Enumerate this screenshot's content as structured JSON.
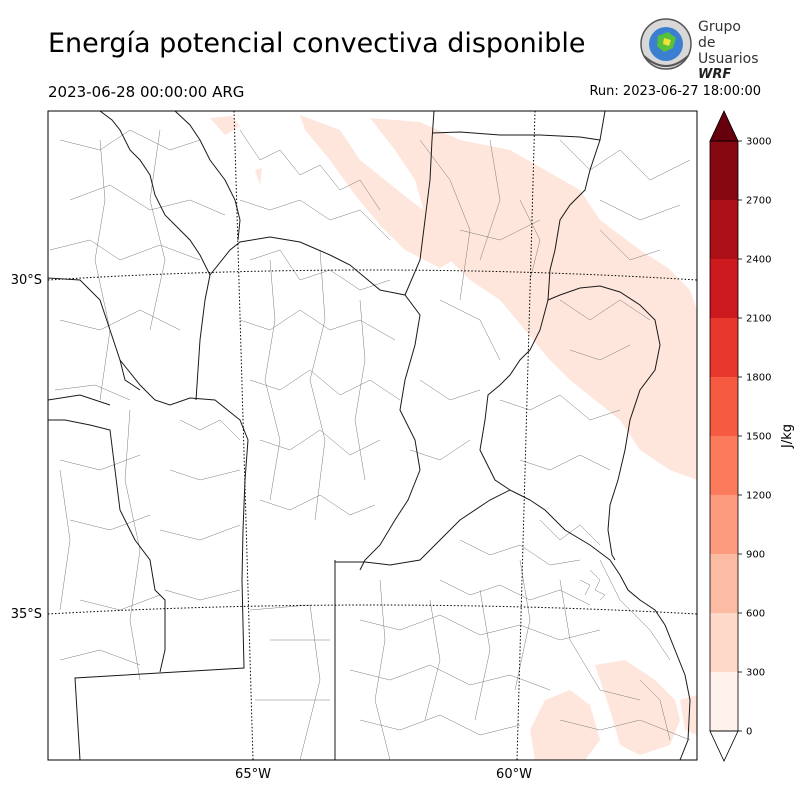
{
  "title": "Energía potencial convectiva disponible",
  "valid_time": "2023-06-28 00:00:00 ARG",
  "run_time": "Run: 2023-06-27 18:00:00",
  "logo": {
    "line1": "Grupo de",
    "line2": "Usuarios",
    "line3": "WRF"
  },
  "map": {
    "lat_labels": [
      "30°S",
      "35°S"
    ],
    "lon_labels": [
      "65°W",
      "60°W"
    ],
    "fill_color": "#fee6dc",
    "border_color": "#000000",
    "gridline_style": "dotted"
  },
  "colorbar": {
    "label": "J/kg",
    "ticks": [
      "0",
      "300",
      "600",
      "900",
      "1200",
      "1500",
      "1800",
      "2100",
      "2400",
      "2700",
      "3000"
    ],
    "colors": [
      "#fff5f0",
      "#fee0d2",
      "#fcbba1",
      "#fc9272",
      "#fb6a4a",
      "#ef3b2c",
      "#cb181d",
      "#a50f15",
      "#67000d"
    ],
    "bins": [
      {
        "from": 0,
        "to": 300,
        "color": "#fff1eb"
      },
      {
        "from": 300,
        "to": 600,
        "color": "#fed9c9"
      },
      {
        "from": 600,
        "to": 900,
        "color": "#fcbca4"
      },
      {
        "from": 900,
        "to": 1200,
        "color": "#fc9b7e"
      },
      {
        "from": 1200,
        "to": 1500,
        "color": "#fb7b5c"
      },
      {
        "from": 1500,
        "to": 1800,
        "color": "#f65a40"
      },
      {
        "from": 1800,
        "to": 2100,
        "color": "#e8382d"
      },
      {
        "from": 2100,
        "to": 2400,
        "color": "#cc1a1f"
      },
      {
        "from": 2400,
        "to": 2700,
        "color": "#ac1117"
      },
      {
        "from": 2700,
        "to": 3000,
        "color": "#860811"
      }
    ],
    "over_color": "#67000d",
    "under_color": "#ffffff"
  }
}
